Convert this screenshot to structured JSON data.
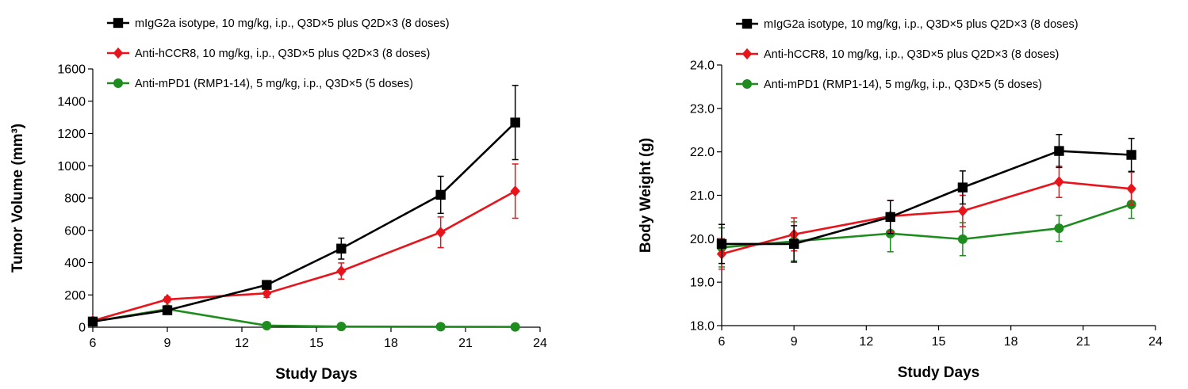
{
  "chart_data": [
    {
      "type": "line",
      "title": "",
      "xlabel": "Study Days",
      "ylabel": "Tumor Volume (mm³)",
      "xlim": [
        6,
        24
      ],
      "ylim": [
        0,
        1600
      ],
      "xticks": [
        "6",
        "9",
        "12",
        "15",
        "18",
        "21",
        "24"
      ],
      "yticks": [
        "0",
        "200",
        "400",
        "600",
        "800",
        "1000",
        "1200",
        "1400",
        "1600"
      ],
      "legend_position": "top-left",
      "series": [
        {
          "name": "mIgG2a isotype, 10 mg/kg, i.p., Q3D×5 plus Q2D×3 (8 doses)",
          "color": "#000000",
          "marker": "square",
          "x": [
            6,
            9,
            13,
            16,
            20,
            23
          ],
          "y": [
            35,
            105,
            262,
            487,
            820,
            1268
          ],
          "error": [
            8,
            15,
            25,
            65,
            115,
            230
          ]
        },
        {
          "name": "Anti-hCCR8, 10 mg/kg, i.p., Q3D×5 plus Q2D×3 (8 doses)",
          "color": "#e8141c",
          "marker": "diamond",
          "x": [
            6,
            9,
            13,
            16,
            20,
            23
          ],
          "y": [
            40,
            172,
            210,
            348,
            588,
            843
          ],
          "error": [
            8,
            15,
            25,
            50,
            95,
            168
          ]
        },
        {
          "name": "Anti-mPD1 (RMP1-14), 5 mg/kg, i.p., Q3D×5 (5 doses)",
          "color": "#1e8c1e",
          "marker": "circle",
          "x": [
            6,
            9,
            13,
            16,
            20,
            23
          ],
          "y": [
            35,
            112,
            10,
            4,
            3,
            2
          ],
          "error": [
            5,
            12,
            4,
            2,
            1,
            1
          ]
        }
      ]
    },
    {
      "type": "line",
      "title": "",
      "xlabel": "Study Days",
      "ylabel": "Body Weight (g)",
      "xlim": [
        6,
        24
      ],
      "ylim": [
        18.0,
        24.0
      ],
      "xticks": [
        "6",
        "9",
        "12",
        "15",
        "18",
        "21",
        "24"
      ],
      "yticks": [
        "18.0",
        "19.0",
        "20.0",
        "21.0",
        "22.0",
        "23.0",
        "24.0"
      ],
      "legend_position": "top-left",
      "series": [
        {
          "name": "mIgG2a isotype, 10 mg/kg, i.p., Q3D×5 plus Q2D×3 (8 doses)",
          "color": "#000000",
          "marker": "square",
          "x": [
            6,
            9,
            13,
            16,
            20,
            23
          ],
          "y": [
            19.88,
            19.88,
            20.5,
            21.18,
            22.02,
            21.93
          ],
          "error": [
            0.45,
            0.42,
            0.38,
            0.38,
            0.38,
            0.38
          ]
        },
        {
          "name": "Anti-hCCR8, 10 mg/kg, i.p., Q3D×5 plus Q2D×3 (8 doses)",
          "color": "#e8141c",
          "marker": "diamond",
          "x": [
            6,
            9,
            13,
            16,
            20,
            23
          ],
          "y": [
            19.65,
            20.1,
            20.52,
            20.64,
            21.31,
            21.15
          ],
          "error": [
            0.35,
            0.38,
            0.36,
            0.36,
            0.36,
            0.38
          ]
        },
        {
          "name": "Anti-mPD1 (RMP1-14), 5 mg/kg, i.p., Q3D×5 (5 doses)",
          "color": "#1e8c1e",
          "marker": "circle",
          "x": [
            6,
            9,
            13,
            16,
            20,
            23
          ],
          "y": [
            19.8,
            19.94,
            20.12,
            19.99,
            20.24,
            20.79
          ],
          "error": [
            0.45,
            0.45,
            0.42,
            0.38,
            0.3,
            0.32
          ]
        }
      ]
    }
  ]
}
